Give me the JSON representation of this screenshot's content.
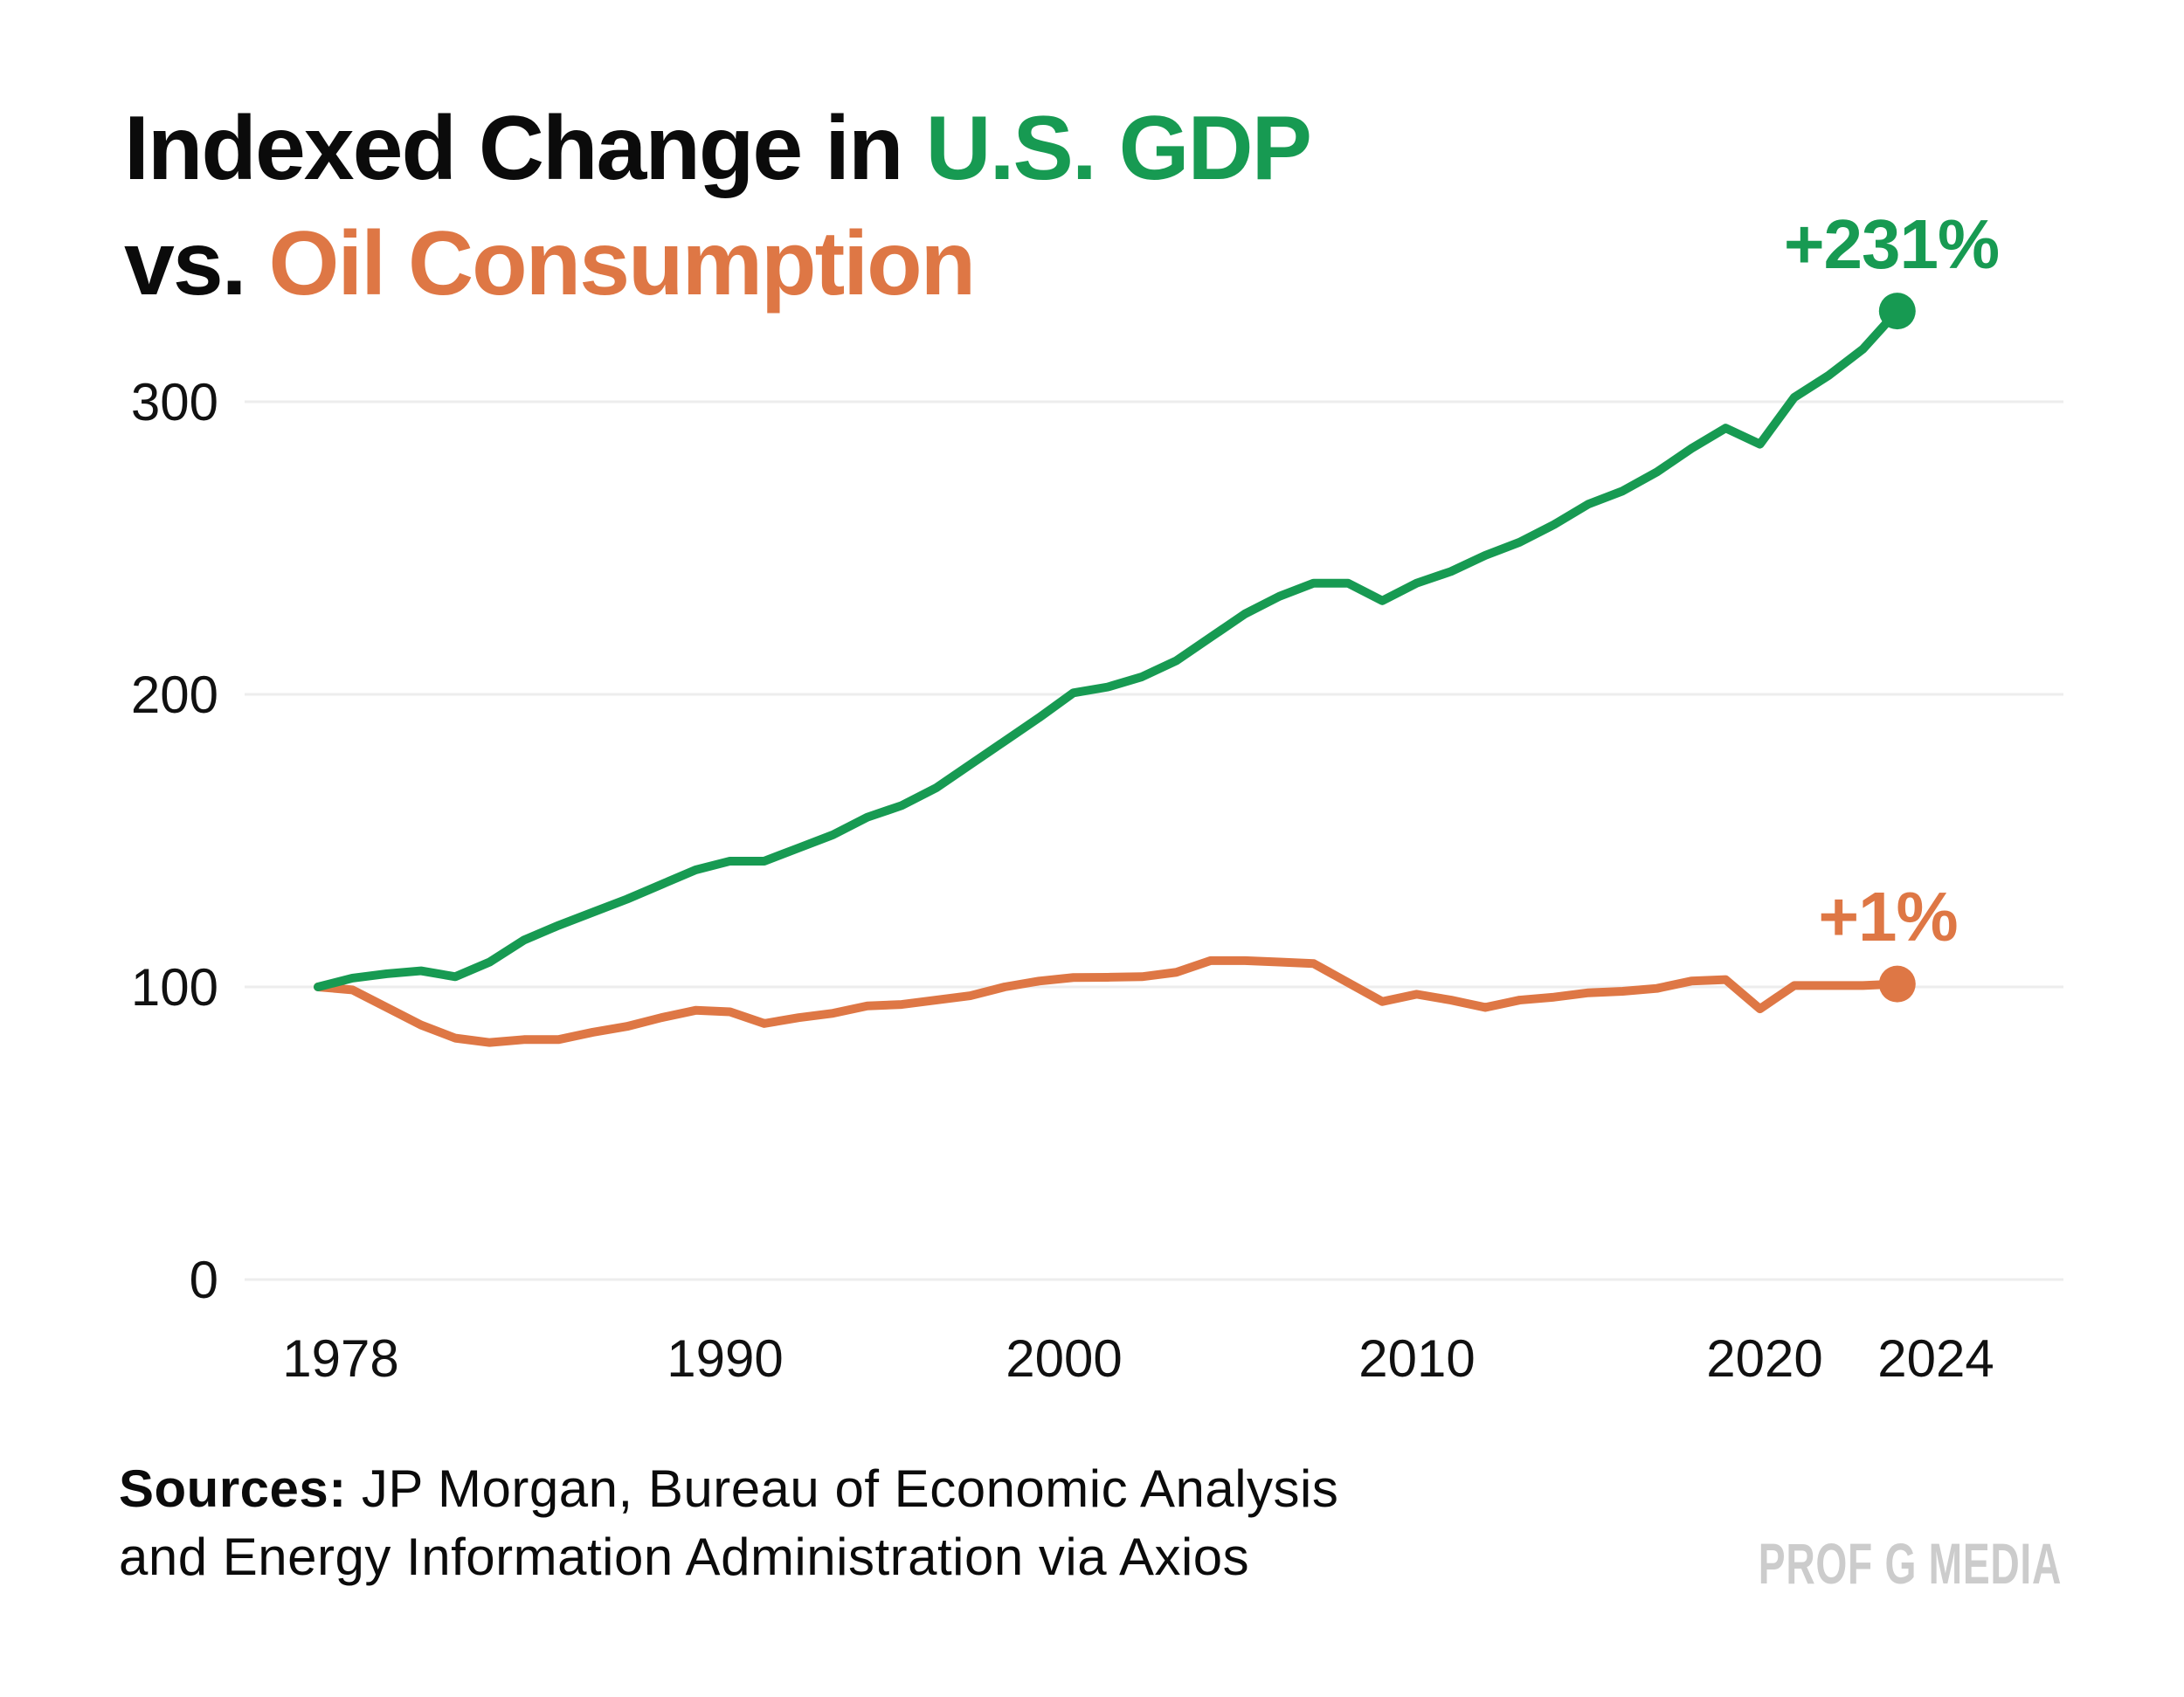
{
  "title": {
    "line1_black": "Indexed Change in ",
    "line1_colored": "U.S. GDP",
    "line2_black": "vs. ",
    "line2_colored": "Oil Consumption"
  },
  "annotations": {
    "gdp_end_label": "+231%",
    "oil_end_label": "+1%"
  },
  "footer": {
    "sources_bold": "Sources:",
    "sources_line1_rest": " JP Morgan, Bureau of Economic Analysis",
    "sources_line2": "and Energy Information Administration via Axios",
    "watermark": "PROF G MEDIA"
  },
  "colors": {
    "gdp_green": "#179a52",
    "oil_orange": "#de7745",
    "grid": "#ededed",
    "axis_text": "#111111",
    "watermark": "#cccccc"
  },
  "chart_data": {
    "type": "line",
    "title": "Indexed Change in U.S. GDP vs. Oil Consumption",
    "xlabel": "",
    "ylabel": "",
    "xlim": [
      1978,
      2024
    ],
    "ylim": [
      0,
      340
    ],
    "grid": "horizontal",
    "legend_position": "end-of-line labels",
    "y_ticks": [
      0,
      100,
      200,
      300
    ],
    "x_ticks": [
      1978,
      1990,
      2000,
      2010,
      2020,
      2024
    ],
    "x": [
      1978,
      1979,
      1980,
      1981,
      1982,
      1983,
      1984,
      1985,
      1986,
      1987,
      1988,
      1989,
      1990,
      1991,
      1992,
      1993,
      1994,
      1995,
      1996,
      1997,
      1998,
      1999,
      2000,
      2001,
      2002,
      2003,
      2004,
      2005,
      2006,
      2007,
      2008,
      2009,
      2010,
      2011,
      2012,
      2013,
      2014,
      2015,
      2016,
      2017,
      2018,
      2019,
      2020,
      2021,
      2022,
      2023,
      2024
    ],
    "series": [
      {
        "name": "U.S. GDP",
        "color": "#179a52",
        "end_label": "+231%",
        "values": [
          100,
          103,
          104.5,
          105.5,
          103.5,
          108.5,
          116,
          121,
          125.5,
          130,
          135,
          140,
          143,
          143,
          147.5,
          152,
          158,
          162,
          168,
          176,
          184,
          192,
          200.5,
          202.5,
          206,
          211.5,
          219.5,
          227.5,
          233.5,
          238,
          238,
          232,
          238,
          242,
          247.5,
          252,
          258,
          265,
          269.5,
          276,
          284,
          291,
          285.5,
          301.5,
          309,
          318,
          331
        ]
      },
      {
        "name": "Oil Consumption",
        "color": "#de7745",
        "end_label": "+1%",
        "values": [
          100,
          99,
          93,
          87,
          82.5,
          81,
          82,
          82,
          84.5,
          86.5,
          89.5,
          92,
          91.5,
          87.5,
          89.5,
          91,
          93.5,
          94,
          95.5,
          97,
          100,
          102,
          103.2,
          103.3,
          103.5,
          105,
          109,
          109,
          108.5,
          108,
          101.5,
          95,
          97.5,
          95.5,
          93,
          95.5,
          96.5,
          98,
          98.5,
          99.5,
          102,
          102.5,
          92.5,
          100.5,
          100.5,
          100.5,
          101
        ]
      }
    ]
  }
}
